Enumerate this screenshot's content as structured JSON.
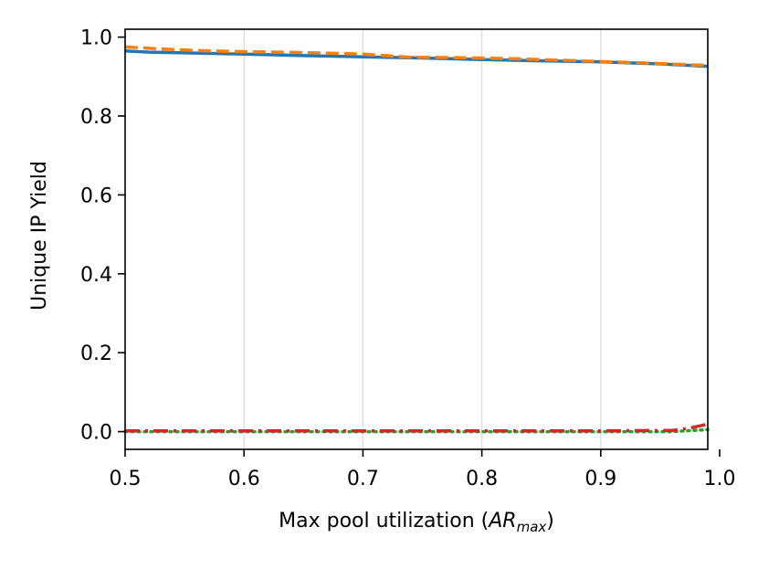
{
  "chart_data": {
    "type": "line",
    "title": "",
    "xlabel_prefix": "Max pool utilization (",
    "xlabel_math_base": "AR",
    "xlabel_math_sub": "max",
    "xlabel_suffix": ")",
    "ylabel": "Unique IP Yield",
    "xlim": [
      0.5,
      0.99
    ],
    "ylim": [
      -0.045,
      1.02
    ],
    "xticks": [
      0.5,
      0.6,
      0.7,
      0.8,
      0.9,
      1.0
    ],
    "xtick_labels": [
      "0.5",
      "0.6",
      "0.7",
      "0.8",
      "0.9",
      "1.0"
    ],
    "yticks": [
      0.0,
      0.2,
      0.4,
      0.6,
      0.8,
      1.0
    ],
    "ytick_labels": [
      "0.0",
      "0.2",
      "0.4",
      "0.6",
      "0.8",
      "1.0"
    ],
    "grid": "vertical",
    "series": [
      {
        "color": "#1f77b4",
        "style": "solid",
        "x": [
          0.5,
          0.52,
          0.55,
          0.6,
          0.65,
          0.7,
          0.75,
          0.8,
          0.85,
          0.9,
          0.95,
          0.99
        ],
        "y": [
          0.965,
          0.962,
          0.96,
          0.957,
          0.953,
          0.95,
          0.947,
          0.943,
          0.94,
          0.937,
          0.932,
          0.926
        ]
      },
      {
        "color": "#ff7f0e",
        "style": "dashed",
        "x": [
          0.5,
          0.53,
          0.56,
          0.6,
          0.65,
          0.7,
          0.74,
          0.78,
          0.82,
          0.86,
          0.9,
          0.94,
          0.99
        ],
        "y": [
          0.975,
          0.97,
          0.966,
          0.963,
          0.961,
          0.957,
          0.949,
          0.948,
          0.946,
          0.942,
          0.938,
          0.934,
          0.928
        ]
      },
      {
        "color": "#2ca02c",
        "style": "dotted",
        "x": [
          0.5,
          0.6,
          0.7,
          0.8,
          0.9,
          0.96,
          0.99
        ],
        "y": [
          0.0,
          0.0,
          0.0,
          0.0,
          0.0,
          0.0,
          0.005
        ]
      },
      {
        "color": "#d62728",
        "style": "dashdot",
        "x": [
          0.5,
          0.6,
          0.7,
          0.8,
          0.9,
          0.96,
          0.975,
          0.99
        ],
        "y": [
          0.002,
          0.002,
          0.002,
          0.002,
          0.002,
          0.003,
          0.009,
          0.019
        ]
      }
    ]
  }
}
